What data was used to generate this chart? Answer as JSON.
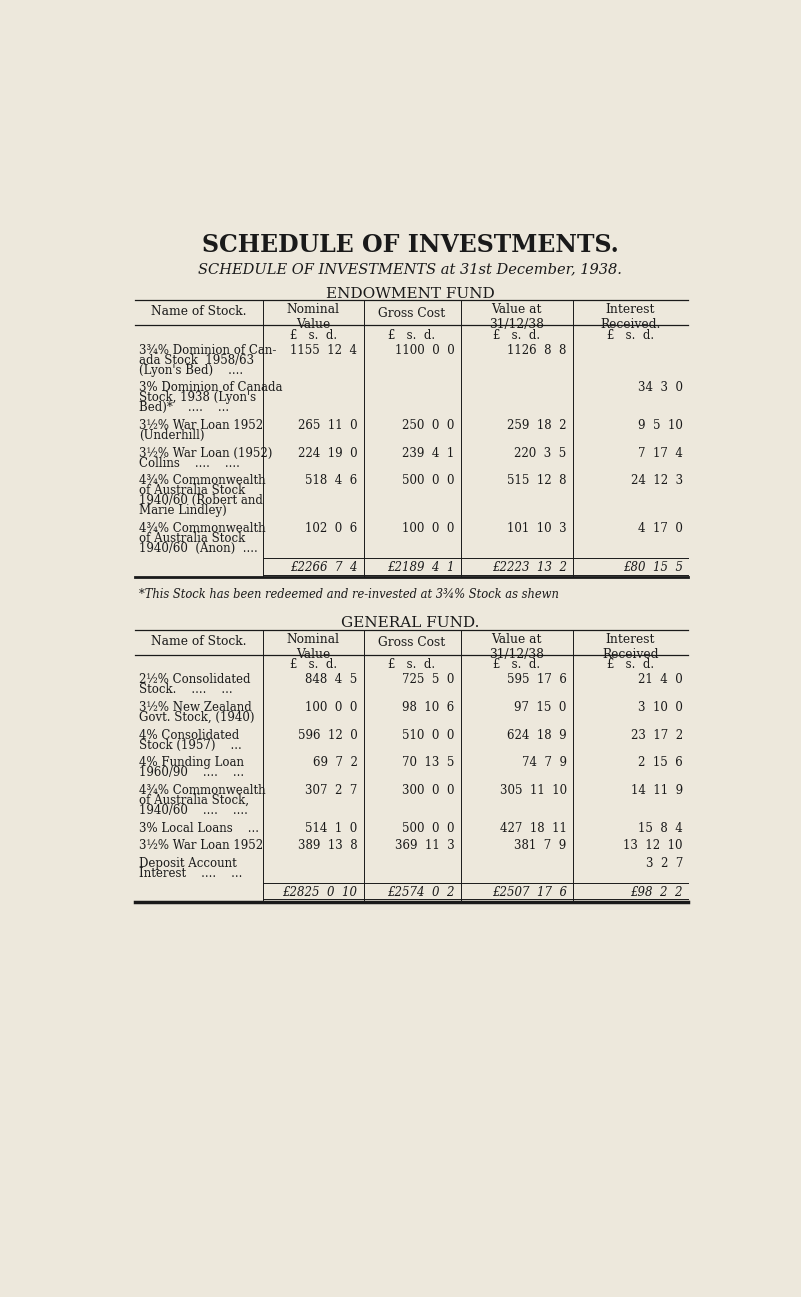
{
  "bg_color": "#ede8dc",
  "text_color": "#1a1a1a",
  "title1": "SCHEDULE OF INVESTMENTS.",
  "title2": "SCHEDULE OF INVESTMENTS at 31st December, 1938.",
  "section1_title": "ENDOWMENT FUND",
  "section2_title": "GENERAL FUND.",
  "endowment_rows": [
    [
      "3¾% Dominion of Can-\nada Stock  1958/63\n(Lyon's Bed)    ....",
      "1155  12  4",
      "1100  0  0",
      "1126  8  8",
      ""
    ],
    [
      "3% Dominion of Canada\nStock, 1938 (Lyon's\nBed)*    ....    ...",
      "",
      "",
      "",
      "34  3  0"
    ],
    [
      "3½% War Loan 1952\n(Underhill)",
      "265  11  0",
      "250  0  0",
      "259  18  2",
      "9  5  10"
    ],
    [
      "3½% War Loan (1952)\nCollins    ....    ....",
      "224  19  0",
      "239  4  1",
      "220  3  5",
      "7  17  4"
    ],
    [
      "4¾% Commonwealth\nof Australia Stock\n1940/60 (Robert and\nMarie Lindley)",
      "518  4  6",
      "500  0  0",
      "515  12  8",
      "24  12  3"
    ],
    [
      "4¾% Commonwealth\nof Australia Stock\n1940/60  (Anon)  ....",
      "102  0  6",
      "100  0  0",
      "101  10  3",
      "4  17  0"
    ]
  ],
  "endowment_totals": [
    "£2266  7  4",
    "£2189  4  1",
    "£2223  13  2",
    "£80  15  5"
  ],
  "footnote": "*This Stock has been redeemed and re-invested at 3¾% Stock as shewn",
  "general_rows": [
    [
      "2½% Consolidated\nStock.    ....    ...",
      "848  4  5",
      "725  5  0",
      "595  17  6",
      "21  4  0"
    ],
    [
      "3½% New Zealand\nGovt. Stock, (1940)",
      "100  0  0",
      "98  10  6",
      "97  15  0",
      "3  10  0"
    ],
    [
      "4% Consolidated\nStock (1957)    ...",
      "596  12  0",
      "510  0  0",
      "624  18  9",
      "23  17  2"
    ],
    [
      "4% Funding Loan\n1960/90    ....    ...",
      "69  7  2",
      "70  13  5",
      "74  7  9",
      "2  15  6"
    ],
    [
      "4¾% Commonwealth\nof Australia Stock,\n1940/60    ....    ....",
      "307  2  7",
      "300  0  0",
      "305  11  10",
      "14  11  9"
    ],
    [
      "3% Local Loans    ...",
      "514  1  0",
      "500  0  0",
      "427  18  11",
      "15  8  4"
    ],
    [
      "3½% War Loan 1952",
      "389  13  8",
      "369  11  3",
      "381  7  9",
      "13  12  10"
    ],
    [
      "Deposit Account\nInterest    ....    ...",
      "",
      "",
      "",
      "3  2  7"
    ]
  ],
  "general_totals": [
    "£2825  0  10",
    "£2574  0  2",
    "£2507  17  6",
    "£98  2  2"
  ]
}
